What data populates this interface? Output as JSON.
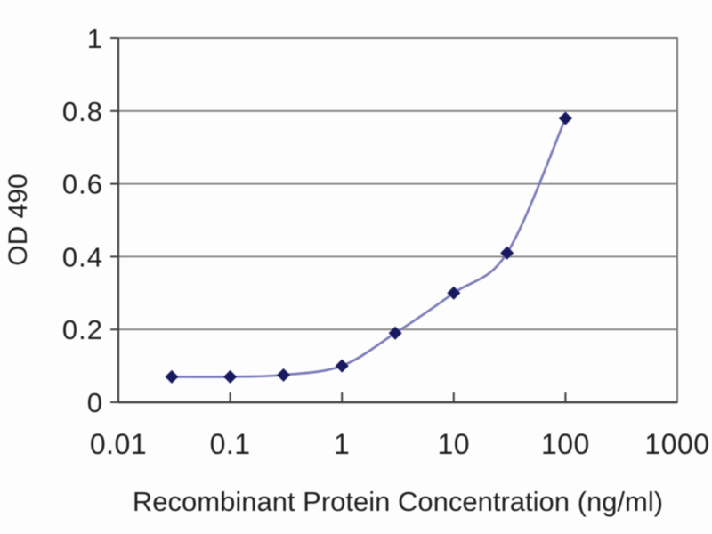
{
  "chart_data": {
    "type": "line",
    "title": "",
    "xlabel": "Recombinant Protein Concentration (ng/ml)",
    "ylabel": "OD 490",
    "x_scale": "log",
    "xlim": [
      0.01,
      1000
    ],
    "ylim": [
      0,
      1
    ],
    "x": [
      0.03,
      0.1,
      0.3,
      1,
      3,
      10,
      30,
      100
    ],
    "y": [
      0.07,
      0.07,
      0.075,
      0.1,
      0.19,
      0.3,
      0.41,
      0.78
    ],
    "x_ticks": [
      0.01,
      0.1,
      1,
      10,
      100,
      1000
    ],
    "x_tick_labels": [
      "0.01",
      "0.1",
      "1",
      "10",
      "100",
      "1000"
    ],
    "y_ticks": [
      0,
      0.2,
      0.4,
      0.6,
      0.8,
      1
    ],
    "y_tick_labels": [
      "0",
      "0.2",
      "0.4",
      "0.6",
      "0.8",
      "1"
    ],
    "grid": "horizontal",
    "legend": "none",
    "marker_shape": "diamond",
    "line_color": "#7b7bb8",
    "marker_color": "#191960",
    "gridline_color": "#7e7e7e",
    "axis_color": "#3d3d3d",
    "frame_color": "#6a6a6a",
    "text_color": "#1f1f1f",
    "background_color": "#fdfdfd"
  }
}
